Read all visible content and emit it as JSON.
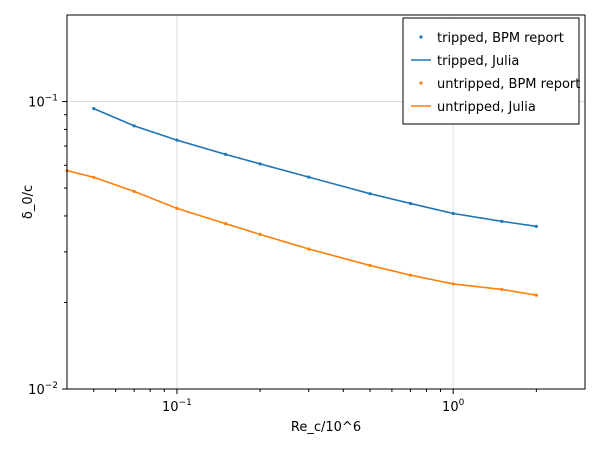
{
  "chart_data": {
    "type": "line",
    "xlabel": "Re_c/10^6",
    "ylabel": "δ_0/c",
    "xscale": "log",
    "yscale": "log",
    "xlim": [
      0.04,
      3.0
    ],
    "ylim": [
      0.01,
      0.2
    ],
    "grid": true,
    "legend_position": "top-right",
    "x_ticks": [
      {
        "base": "10",
        "exp": "−1",
        "value": 0.1
      },
      {
        "base": "10",
        "exp": "0",
        "value": 1.0
      }
    ],
    "y_ticks": [
      {
        "base": "10",
        "exp": "−2",
        "value": 0.01
      },
      {
        "base": "10",
        "exp": "−1",
        "value": 0.1
      }
    ],
    "series": [
      {
        "name": "tripped, BPM report",
        "kind": "scatter",
        "color": "#1f77b4",
        "x": [
          0.05,
          0.07,
          0.1,
          0.15,
          0.2,
          0.3,
          0.5,
          0.7,
          1.0,
          1.5,
          2.0
        ],
        "y": [
          0.0945,
          0.0823,
          0.0734,
          0.0655,
          0.0607,
          0.0546,
          0.0478,
          0.0442,
          0.0408,
          0.0383,
          0.0368
        ]
      },
      {
        "name": "tripped, Julia",
        "kind": "line",
        "color": "#1f77b4",
        "x": [
          0.05,
          0.07,
          0.1,
          0.15,
          0.2,
          0.3,
          0.5,
          0.7,
          1.0,
          1.5,
          2.0
        ],
        "y": [
          0.0945,
          0.0823,
          0.0734,
          0.0655,
          0.0607,
          0.0546,
          0.0478,
          0.0442,
          0.0408,
          0.0383,
          0.0368
        ]
      },
      {
        "name": "untripped, BPM report",
        "kind": "scatter",
        "color": "#ff7f0e",
        "x": [
          0.04,
          0.05,
          0.07,
          0.1,
          0.15,
          0.2,
          0.3,
          0.5,
          0.7,
          1.0,
          1.5,
          2.0
        ],
        "y": [
          0.0575,
          0.0545,
          0.0487,
          0.0425,
          0.0376,
          0.0345,
          0.0307,
          0.0269,
          0.0249,
          0.0232,
          0.0222,
          0.0212
        ]
      },
      {
        "name": "untripped, Julia",
        "kind": "line",
        "color": "#ff7f0e",
        "x": [
          0.04,
          0.05,
          0.07,
          0.1,
          0.15,
          0.2,
          0.3,
          0.5,
          0.7,
          1.0,
          1.5,
          2.0
        ],
        "y": [
          0.0575,
          0.0545,
          0.0487,
          0.0425,
          0.0376,
          0.0345,
          0.0307,
          0.0269,
          0.0249,
          0.0232,
          0.0222,
          0.0212
        ]
      }
    ]
  }
}
